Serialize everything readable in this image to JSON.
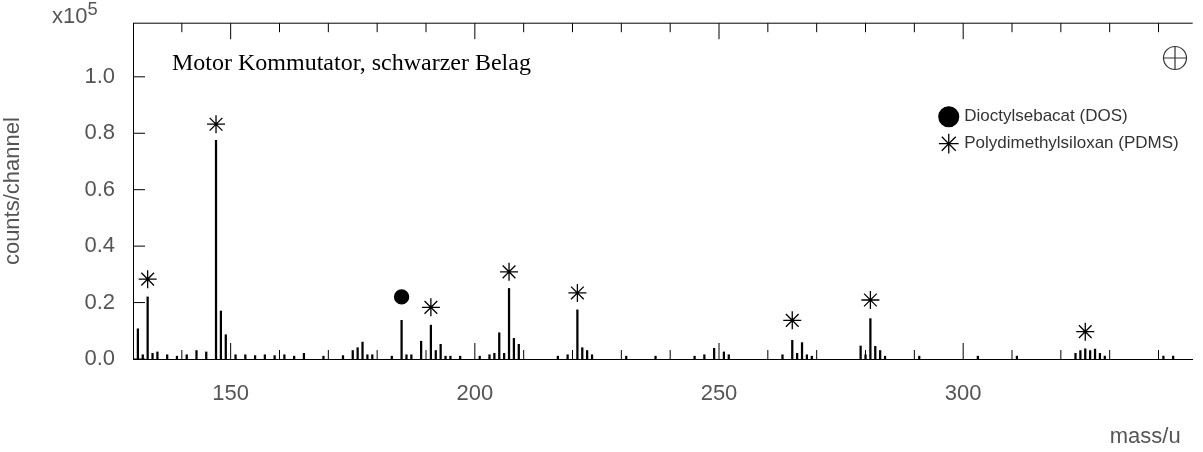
{
  "chart_data": {
    "type": "bar",
    "title": "Motor Kommutator, schwarzer Belag",
    "xlabel": "mass/u",
    "ylabel": "counts/channel",
    "annotations": [
      "x10$^{5}$"
    ],
    "legend": "top right",
    "xlim": [
      130,
      347
    ],
    "xticks": [
      {
        "value": 140,
        "label": null
      },
      150,
      {
        "value": 160,
        "label": null
      },
      {
        "value": 170,
        "label": null
      },
      {
        "value": 180,
        "label": null
      },
      {
        "value": 190,
        "label": null
      },
      200,
      {
        "value": 210,
        "label": null
      },
      {
        "value": 220,
        "label": null
      },
      {
        "value": 230,
        "label": null
      },
      {
        "value": 240,
        "label": null
      },
      250,
      {
        "value": 260,
        "label": null
      },
      {
        "value": 270,
        "label": null
      },
      {
        "value": 280,
        "label": null
      },
      {
        "value": 290,
        "label": null
      },
      300,
      {
        "value": 310,
        "label": null
      },
      {
        "value": 320,
        "label": null
      },
      {
        "value": 330,
        "label": null
      },
      {
        "value": 340,
        "label": null
      }
    ],
    "ylim": [
      0,
      1.19
    ],
    "yticks": [
      {
        "value": 0,
        "label": "0.0"
      },
      0.2,
      0.4,
      0.6,
      0.8,
      {
        "value": 1,
        "label": "1.0"
      }
    ],
    "series": [
      {
        "color": "#000000",
        "x": [
          131,
          132,
          133,
          134,
          135,
          137,
          139,
          141,
          143,
          145,
          147,
          148,
          149,
          151,
          153,
          155,
          157,
          159,
          161,
          163,
          165,
          169,
          173,
          175,
          176,
          177,
          178,
          179,
          183,
          185,
          186,
          187,
          189,
          190,
          191,
          192,
          193,
          194,
          195,
          197,
          201,
          203,
          204,
          205,
          206,
          207,
          208,
          209,
          210,
          217,
          219,
          221,
          222,
          223,
          224,
          231,
          237,
          245,
          247,
          249,
          250,
          251,
          252,
          263,
          265,
          266,
          267,
          268,
          269,
          279,
          280,
          281,
          282,
          283,
          284,
          291,
          303,
          311,
          323,
          324,
          325,
          326,
          327,
          328,
          329,
          341,
          343
        ],
        "values": [
          0.107,
          0.015,
          0.22,
          0.02,
          0.025,
          0.015,
          0.01,
          0.015,
          0.03,
          0.025,
          0.775,
          0.17,
          0.086,
          0.015,
          0.015,
          0.012,
          0.015,
          0.012,
          0.015,
          0.01,
          0.02,
          0.01,
          0.012,
          0.03,
          0.04,
          0.06,
          0.015,
          0.015,
          0.01,
          0.137,
          0.015,
          0.015,
          0.063,
          null,
          0.12,
          0.03,
          0.052,
          0.01,
          0.01,
          0.01,
          0.01,
          0.015,
          0.02,
          0.093,
          0.02,
          0.25,
          0.073,
          0.052,
          null,
          0.01,
          0.015,
          0.174,
          0.04,
          0.03,
          0.015,
          0.01,
          0.01,
          0.01,
          0.015,
          0.038,
          null,
          0.025,
          0.015,
          0.015,
          0.066,
          0.02,
          0.058,
          0.015,
          0.01,
          0.046,
          0.015,
          0.143,
          0.045,
          0.03,
          0.01,
          0.01,
          0.01,
          0.01,
          0.02,
          0.03,
          0.036,
          0.03,
          0.035,
          0.02,
          0.01,
          0.01,
          0.01
        ]
      },
      {
        "type": "scatter",
        "name": "Dioctylsebacat (DOS)",
        "marker": "circle",
        "color": "#000000",
        "x": [
          185
        ],
        "values": [
          0.22
        ]
      },
      {
        "type": "scatter",
        "name": "Polydimethylsiloxan (PDMS)",
        "marker": "cross",
        "color": "#000000",
        "x": [
          133,
          147,
          191,
          207,
          221,
          265,
          281,
          325
        ],
        "values": [
          0.283,
          0.832,
          0.183,
          0.309,
          0.234,
          0.137,
          0.209,
          0.097
        ]
      }
    ]
  }
}
